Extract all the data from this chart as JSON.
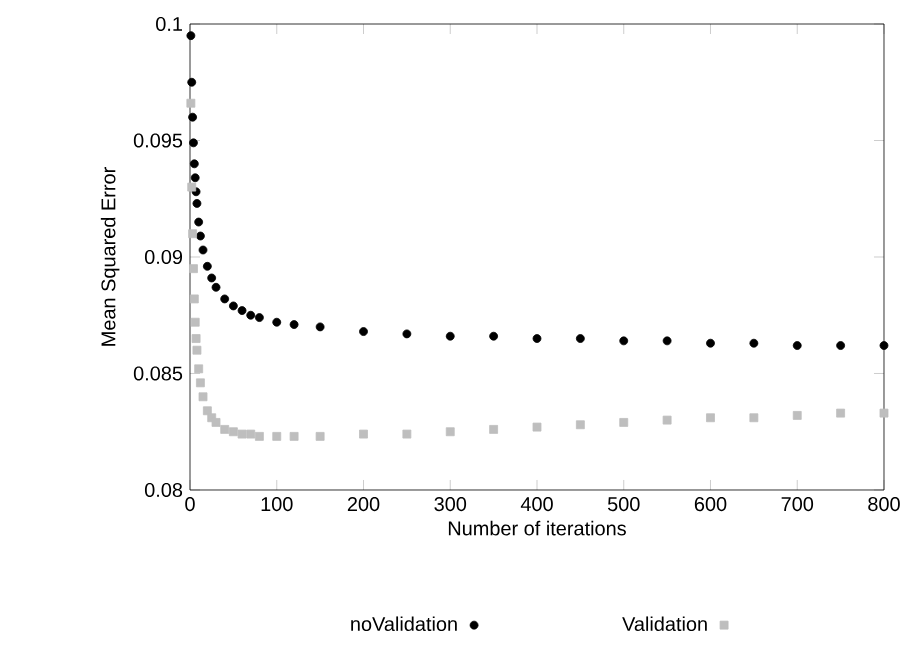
{
  "chart_data": {
    "type": "scatter",
    "xlabel": "Number of iterations",
    "ylabel": "Mean Squared Error",
    "x": [
      1,
      2,
      3,
      4,
      5,
      6,
      7,
      8,
      10,
      12,
      15,
      20,
      25,
      30,
      40,
      50,
      60,
      70,
      80,
      100,
      120,
      150,
      200,
      250,
      300,
      350,
      400,
      450,
      500,
      550,
      600,
      650,
      700,
      750,
      800
    ],
    "series": [
      {
        "name": "noValidation",
        "color": "#000000",
        "marker": "circle",
        "values": [
          0.0995,
          0.0975,
          0.096,
          0.0949,
          0.094,
          0.0934,
          0.0928,
          0.0923,
          0.0915,
          0.0909,
          0.0903,
          0.0896,
          0.0891,
          0.0887,
          0.0882,
          0.0879,
          0.0877,
          0.0875,
          0.0874,
          0.0872,
          0.0871,
          0.087,
          0.0868,
          0.0867,
          0.0866,
          0.0866,
          0.0865,
          0.0865,
          0.0864,
          0.0864,
          0.0863,
          0.0863,
          0.0862,
          0.0862,
          0.0862
        ]
      },
      {
        "name": "Validation",
        "color": "#bebebe",
        "marker": "square",
        "values": [
          0.0966,
          0.093,
          0.091,
          0.0895,
          0.0882,
          0.0872,
          0.0865,
          0.086,
          0.0852,
          0.0846,
          0.084,
          0.0834,
          0.0831,
          0.0829,
          0.0826,
          0.0825,
          0.0824,
          0.0824,
          0.0823,
          0.0823,
          0.0823,
          0.0823,
          0.0824,
          0.0824,
          0.0825,
          0.0826,
          0.0827,
          0.0828,
          0.0829,
          0.083,
          0.0831,
          0.0831,
          0.0832,
          0.0833,
          0.0833
        ]
      }
    ],
    "xlim": [
      0,
      800
    ],
    "ylim": [
      0.08,
      0.1
    ],
    "xticks": [
      0,
      100,
      200,
      300,
      400,
      500,
      600,
      700,
      800
    ],
    "yticks": [
      0.08,
      0.085,
      0.09,
      0.095,
      0.1
    ],
    "grid": false,
    "legend": "bottom"
  }
}
